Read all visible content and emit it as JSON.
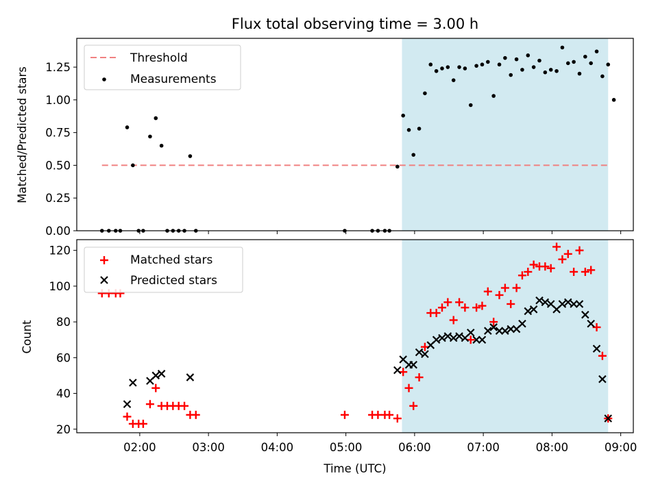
{
  "title": "Flux total observing time = 3.00 h",
  "chart_data": [
    {
      "type": "scatter",
      "panel": "top",
      "title": "Flux total observing time = 3.00 h",
      "xlabel": "",
      "ylabel": "Matched/Predicted stars",
      "xlim": [
        "01:05",
        "09:11"
      ],
      "ylim": [
        0,
        1.47
      ],
      "yticks": [
        0.0,
        0.25,
        0.5,
        0.75,
        1.0,
        1.25
      ],
      "ytick_labels": [
        "0.00",
        "0.25",
        "0.50",
        "0.75",
        "1.00",
        "1.25"
      ],
      "shaded_region": {
        "x": [
          "05:49",
          "08:49"
        ],
        "color": "#add8e6"
      },
      "threshold": {
        "value": 0.5,
        "x": [
          "01:27",
          "08:49"
        ],
        "color": "#f08080"
      },
      "legend": {
        "position": "upper left",
        "entries": [
          "Threshold",
          "Measurements"
        ]
      },
      "series": [
        {
          "name": "Measurements",
          "marker": "dot",
          "color": "#000000",
          "points": [
            [
              "01:27",
              0
            ],
            [
              "01:33",
              0
            ],
            [
              "01:39",
              0
            ],
            [
              "01:43",
              0
            ],
            [
              "01:49",
              0.79
            ],
            [
              "01:54",
              0.5
            ],
            [
              "01:59",
              0
            ],
            [
              "02:03",
              0
            ],
            [
              "02:09",
              0.72
            ],
            [
              "02:14",
              0.86
            ],
            [
              "02:19",
              0.65
            ],
            [
              "02:24",
              0
            ],
            [
              "02:29",
              0
            ],
            [
              "02:34",
              0
            ],
            [
              "02:39",
              0
            ],
            [
              "02:44",
              0.57
            ],
            [
              "02:49",
              0
            ],
            [
              "04:59",
              0
            ],
            [
              "05:23",
              0
            ],
            [
              "05:28",
              0
            ],
            [
              "05:34",
              0
            ],
            [
              "05:38",
              0
            ],
            [
              "05:45",
              0.49
            ],
            [
              "05:50",
              0.88
            ],
            [
              "05:55",
              0.77
            ],
            [
              "05:59",
              0.58
            ],
            [
              "06:04",
              0.78
            ],
            [
              "06:09",
              1.05
            ],
            [
              "06:14",
              1.27
            ],
            [
              "06:19",
              1.22
            ],
            [
              "06:24",
              1.24
            ],
            [
              "06:29",
              1.25
            ],
            [
              "06:34",
              1.15
            ],
            [
              "06:39",
              1.25
            ],
            [
              "06:44",
              1.24
            ],
            [
              "06:49",
              0.96
            ],
            [
              "06:54",
              1.26
            ],
            [
              "06:59",
              1.27
            ],
            [
              "07:04",
              1.29
            ],
            [
              "07:09",
              1.03
            ],
            [
              "07:14",
              1.27
            ],
            [
              "07:19",
              1.32
            ],
            [
              "07:24",
              1.19
            ],
            [
              "07:29",
              1.31
            ],
            [
              "07:34",
              1.23
            ],
            [
              "07:39",
              1.34
            ],
            [
              "07:44",
              1.25
            ],
            [
              "07:49",
              1.3
            ],
            [
              "07:54",
              1.21
            ],
            [
              "07:59",
              1.23
            ],
            [
              "08:04",
              1.22
            ],
            [
              "08:09",
              1.4
            ],
            [
              "08:14",
              1.28
            ],
            [
              "08:19",
              1.29
            ],
            [
              "08:24",
              1.2
            ],
            [
              "08:29",
              1.33
            ],
            [
              "08:34",
              1.28
            ],
            [
              "08:39",
              1.37
            ],
            [
              "08:44",
              1.18
            ],
            [
              "08:49",
              1.27
            ],
            [
              "08:54",
              1.0
            ]
          ]
        }
      ]
    },
    {
      "type": "scatter",
      "panel": "bottom",
      "xlabel": "Time (UTC)",
      "ylabel": "Count",
      "xlim": [
        "01:05",
        "09:11"
      ],
      "ylim": [
        18,
        126
      ],
      "yticks": [
        20,
        40,
        60,
        80,
        100,
        120
      ],
      "xticks": [
        "02:00",
        "03:00",
        "04:00",
        "05:00",
        "06:00",
        "07:00",
        "08:00",
        "09:00"
      ],
      "shaded_region": {
        "x": [
          "05:49",
          "08:49"
        ],
        "color": "#add8e6"
      },
      "legend": {
        "position": "upper left",
        "entries": [
          "Matched stars",
          "Predicted stars"
        ]
      },
      "series": [
        {
          "name": "Matched stars",
          "marker": "plus",
          "color": "#ff0000",
          "points": [
            [
              "01:27",
              96
            ],
            [
              "01:33",
              96
            ],
            [
              "01:39",
              96
            ],
            [
              "01:43",
              96
            ],
            [
              "01:49",
              27
            ],
            [
              "01:54",
              23
            ],
            [
              "01:59",
              23
            ],
            [
              "02:03",
              23
            ],
            [
              "02:09",
              34
            ],
            [
              "02:14",
              43
            ],
            [
              "02:19",
              33
            ],
            [
              "02:24",
              33
            ],
            [
              "02:29",
              33
            ],
            [
              "02:34",
              33
            ],
            [
              "02:39",
              33
            ],
            [
              "02:44",
              28
            ],
            [
              "02:49",
              28
            ],
            [
              "04:59",
              28
            ],
            [
              "05:23",
              28
            ],
            [
              "05:28",
              28
            ],
            [
              "05:34",
              28
            ],
            [
              "05:38",
              28
            ],
            [
              "05:45",
              26
            ],
            [
              "05:50",
              52
            ],
            [
              "05:55",
              43
            ],
            [
              "05:59",
              33
            ],
            [
              "06:04",
              49
            ],
            [
              "06:09",
              66
            ],
            [
              "06:14",
              85
            ],
            [
              "06:19",
              85
            ],
            [
              "06:24",
              88
            ],
            [
              "06:29",
              91
            ],
            [
              "06:34",
              81
            ],
            [
              "06:39",
              91
            ],
            [
              "06:44",
              88
            ],
            [
              "06:49",
              70
            ],
            [
              "06:54",
              88
            ],
            [
              "06:59",
              89
            ],
            [
              "07:04",
              97
            ],
            [
              "07:09",
              80
            ],
            [
              "07:14",
              95
            ],
            [
              "07:19",
              99
            ],
            [
              "07:24",
              90
            ],
            [
              "07:29",
              99
            ],
            [
              "07:34",
              106
            ],
            [
              "07:39",
              108
            ],
            [
              "07:44",
              112
            ],
            [
              "07:49",
              111
            ],
            [
              "07:54",
              111
            ],
            [
              "07:59",
              110
            ],
            [
              "08:04",
              122
            ],
            [
              "08:09",
              115
            ],
            [
              "08:14",
              118
            ],
            [
              "08:19",
              108
            ],
            [
              "08:24",
              120
            ],
            [
              "08:29",
              108
            ],
            [
              "08:34",
              109
            ],
            [
              "08:39",
              77
            ],
            [
              "08:44",
              61
            ],
            [
              "08:49",
              26
            ]
          ]
        },
        {
          "name": "Predicted stars",
          "marker": "x",
          "color": "#000000",
          "points": [
            [
              "01:49",
              34
            ],
            [
              "01:54",
              46
            ],
            [
              "02:09",
              47
            ],
            [
              "02:14",
              50
            ],
            [
              "02:19",
              51
            ],
            [
              "02:44",
              49
            ],
            [
              "05:45",
              53
            ],
            [
              "05:50",
              59
            ],
            [
              "05:55",
              56
            ],
            [
              "05:59",
              56
            ],
            [
              "06:04",
              63
            ],
            [
              "06:09",
              62
            ],
            [
              "06:14",
              67
            ],
            [
              "06:19",
              70
            ],
            [
              "06:24",
              71
            ],
            [
              "06:29",
              72
            ],
            [
              "06:34",
              71
            ],
            [
              "06:39",
              72
            ],
            [
              "06:44",
              71
            ],
            [
              "06:49",
              74
            ],
            [
              "06:54",
              70
            ],
            [
              "06:59",
              70
            ],
            [
              "07:04",
              75
            ],
            [
              "07:09",
              77
            ],
            [
              "07:14",
              75
            ],
            [
              "07:19",
              75
            ],
            [
              "07:24",
              76
            ],
            [
              "07:29",
              76
            ],
            [
              "07:34",
              79
            ],
            [
              "07:39",
              86
            ],
            [
              "07:44",
              87
            ],
            [
              "07:49",
              92
            ],
            [
              "07:54",
              91
            ],
            [
              "07:59",
              90
            ],
            [
              "08:04",
              87
            ],
            [
              "08:09",
              90
            ],
            [
              "08:14",
              91
            ],
            [
              "08:19",
              90
            ],
            [
              "08:24",
              90
            ],
            [
              "08:29",
              84
            ],
            [
              "08:34",
              79
            ],
            [
              "08:39",
              65
            ],
            [
              "08:44",
              48
            ],
            [
              "08:49",
              26
            ]
          ]
        }
      ]
    }
  ]
}
